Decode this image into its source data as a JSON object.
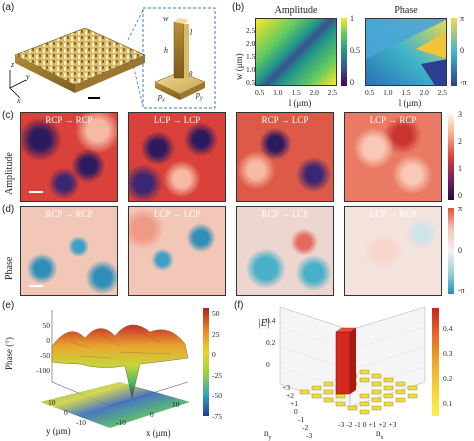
{
  "panel_labels": {
    "a": "(a)",
    "b": "(b)",
    "c": "(c)",
    "d": "(d)",
    "e": "(e)",
    "f": "(f)"
  },
  "panel_a": {
    "axes": {
      "x": "x",
      "y": "y",
      "z": "z"
    },
    "inset_labels": {
      "w": "w",
      "l": "l",
      "h": "h",
      "theta": "θ",
      "px": "p",
      "px_sub": "x",
      "py": "p",
      "py_sub": "y"
    }
  },
  "panel_b": {
    "titles": [
      "Amplitude",
      "Phase"
    ],
    "ylabel": "w (μm)",
    "xlabel": "l (μm)",
    "yticks": [
      "0.5",
      "1.0",
      "1.5",
      "2.0",
      "2.5"
    ],
    "xticks": [
      "0.5",
      "1.0",
      "1.5",
      "2.0",
      "2.5"
    ],
    "amp_cbar": [
      "1",
      "0.5",
      "0"
    ],
    "phase_cbar": [
      "π",
      "0",
      "-π"
    ]
  },
  "row_c": {
    "ylabel": "Amplitude",
    "titles": [
      "RCP → RCP",
      "LCP → LCP",
      "RCP → LCP",
      "LCP → RCP"
    ],
    "cbar_ticks": [
      "3",
      "2",
      "1",
      "0"
    ]
  },
  "row_d": {
    "ylabel": "Phase",
    "titles": [
      "RCP → RCP",
      "LCP → LCP",
      "RCP → LCP",
      "LCP → RCP"
    ],
    "cbar_ticks": [
      "π",
      "0",
      "-π"
    ]
  },
  "panel_e": {
    "zlabel": "Phase (°)",
    "zticks": [
      "50",
      "0",
      "-50",
      "-100"
    ],
    "ylabel": "y (μm)",
    "xlabel": "x (μm)",
    "yticks": [
      "10",
      "0",
      "-10"
    ],
    "xticks": [
      "-10",
      "0",
      "10"
    ],
    "cbar_ticks": [
      "50",
      "25",
      "0",
      "-25",
      "-50",
      "-75"
    ]
  },
  "panel_f": {
    "zlabel": "|E|",
    "ylabel": "n",
    "ylabel_sub": "y",
    "xlabel": "n",
    "xlabel_sub": "x",
    "ny_ticks": [
      "+3",
      "+2",
      "+1",
      "0",
      "-1",
      "-2",
      "-3"
    ],
    "nx_ticks": [
      "-3",
      "-2",
      "-1",
      "0",
      "+1",
      "+2",
      "+3"
    ],
    "zticks": [
      "0.4",
      "0.2",
      "0"
    ],
    "cbar_ticks": [
      "0.4",
      "0.3",
      "0.2",
      "0.1"
    ]
  }
}
